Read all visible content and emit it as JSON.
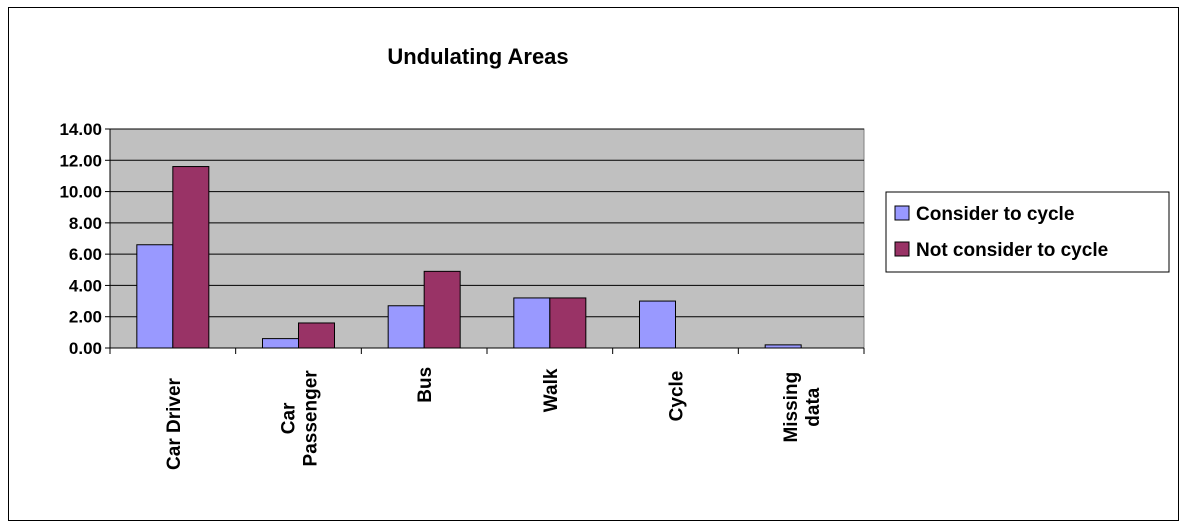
{
  "chart_data": {
    "type": "bar",
    "title": "Undulating Areas",
    "categories": [
      [
        "Car Driver"
      ],
      [
        "Car",
        "Passenger"
      ],
      [
        "Bus"
      ],
      [
        "Walk"
      ],
      [
        "Cycle"
      ],
      [
        "Missing",
        "data"
      ]
    ],
    "series": [
      {
        "name": "Consider to cycle",
        "color": "#9999ff",
        "values": [
          6.6,
          0.6,
          2.7,
          3.2,
          3.0,
          0.2
        ]
      },
      {
        "name": "Not consider to cycle",
        "color": "#993366",
        "values": [
          11.6,
          1.6,
          4.9,
          3.2,
          0.0,
          0.0
        ]
      }
    ],
    "ylim": [
      0,
      14
    ],
    "ytick_step": 2,
    "ytick_format_decimals": 2,
    "grid": true,
    "plot_background": "#c0c0c0",
    "legend_position": "right"
  }
}
